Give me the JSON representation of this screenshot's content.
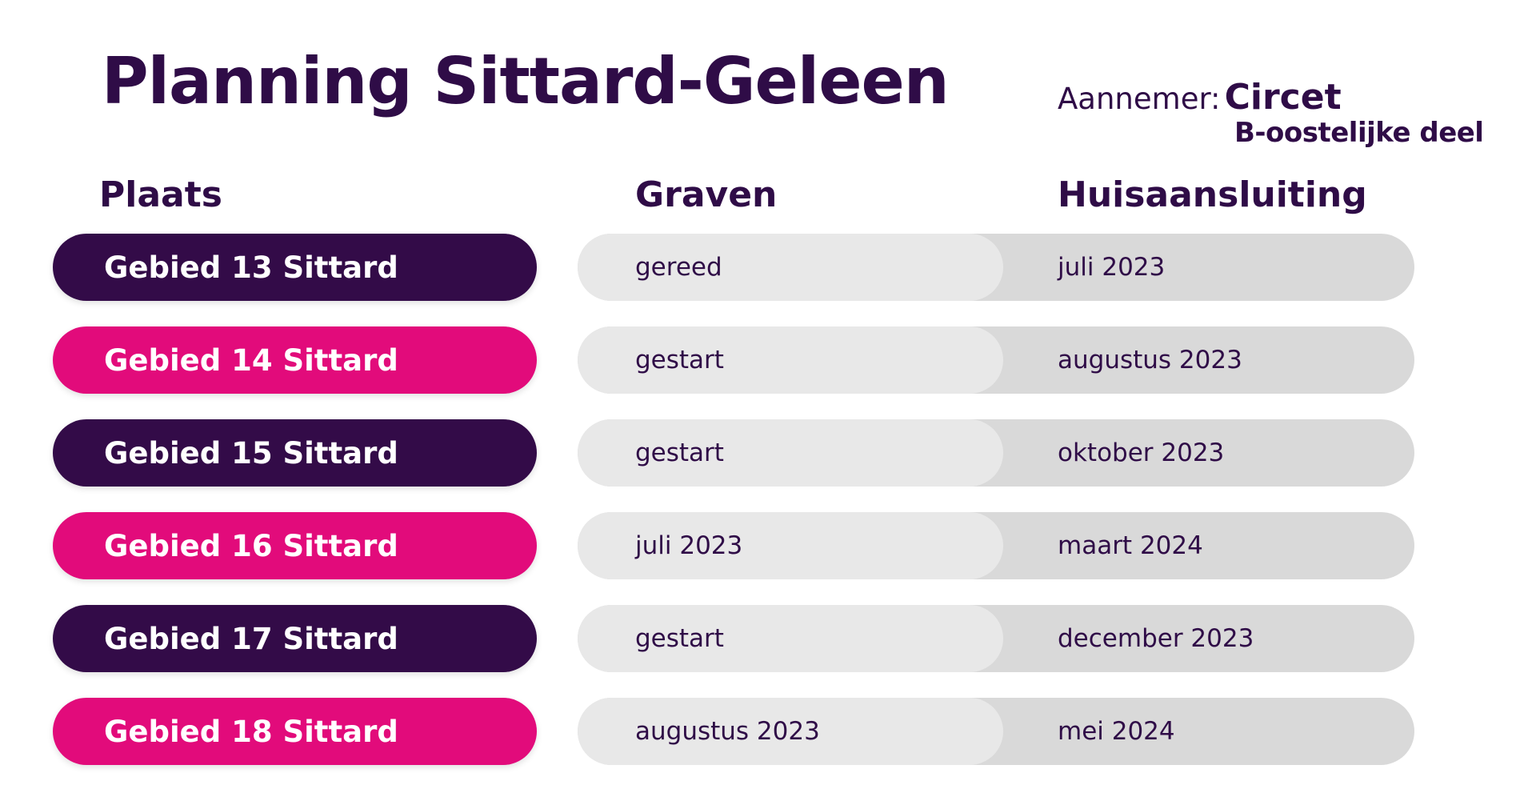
{
  "title": "Planning Sittard-Geleen",
  "contractor": {
    "label": "Aannemer:",
    "name": "Circet",
    "area": "B-oostelijke deel"
  },
  "headers": {
    "place": "Plaats",
    "digging": "Graven",
    "connection": "Huisaansluiting"
  },
  "rows": [
    {
      "place": "Gebied 13 Sittard",
      "digging": "gereed",
      "connection": "juli 2023"
    },
    {
      "place": "Gebied 14 Sittard",
      "digging": "gestart",
      "connection": "augustus 2023"
    },
    {
      "place": "Gebied 15 Sittard",
      "digging": "gestart",
      "connection": "oktober 2023"
    },
    {
      "place": "Gebied 16 Sittard",
      "digging": "juli 2023",
      "connection": "maart 2024"
    },
    {
      "place": "Gebied 17 Sittard",
      "digging": "gestart",
      "connection": "december 2023"
    },
    {
      "place": "Gebied 18 Sittard",
      "digging": "augustus 2023",
      "connection": "mei 2024"
    }
  ],
  "colors": {
    "dark_purple": "#330b48",
    "magenta": "#e20b7b",
    "light_grey": "#e8e8e8",
    "mid_grey": "#d9d9d9"
  }
}
